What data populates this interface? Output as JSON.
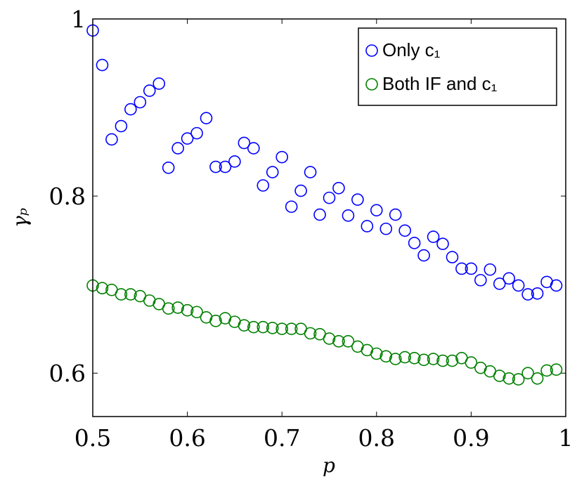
{
  "chart_data": {
    "type": "scatter",
    "x_label": "p",
    "y_label": "γₚ",
    "x": [
      0.5,
      0.51,
      0.52,
      0.53,
      0.54,
      0.55,
      0.56,
      0.57,
      0.58,
      0.59,
      0.6,
      0.61,
      0.62,
      0.63,
      0.64,
      0.65,
      0.66,
      0.67,
      0.68,
      0.69,
      0.7,
      0.71,
      0.72,
      0.73,
      0.74,
      0.75,
      0.76,
      0.77,
      0.78,
      0.79,
      0.8,
      0.81,
      0.82,
      0.83,
      0.84,
      0.85,
      0.86,
      0.87,
      0.88,
      0.89,
      0.9,
      0.91,
      0.92,
      0.93,
      0.94,
      0.95,
      0.96,
      0.97,
      0.98,
      0.99
    ],
    "series": [
      {
        "name": "Only c₁",
        "color": "#0000ff",
        "values": [
          0.987,
          0.948,
          0.864,
          0.879,
          0.898,
          0.906,
          0.919,
          0.927,
          0.832,
          0.854,
          0.865,
          0.871,
          0.888,
          0.833,
          0.833,
          0.839,
          0.86,
          0.854,
          0.812,
          0.827,
          0.844,
          0.788,
          0.806,
          0.827,
          0.779,
          0.798,
          0.809,
          0.778,
          0.796,
          0.766,
          0.784,
          0.763,
          0.779,
          0.761,
          0.747,
          0.733,
          0.754,
          0.746,
          0.731,
          0.718,
          0.718,
          0.705,
          0.717,
          0.701,
          0.707,
          0.699,
          0.689,
          0.69,
          0.703,
          0.699
        ]
      },
      {
        "name": "Both IF and c₁",
        "color": "#008000",
        "values": [
          0.699,
          0.696,
          0.694,
          0.689,
          0.689,
          0.687,
          0.682,
          0.678,
          0.673,
          0.674,
          0.671,
          0.669,
          0.663,
          0.659,
          0.662,
          0.658,
          0.654,
          0.652,
          0.652,
          0.651,
          0.65,
          0.65,
          0.65,
          0.645,
          0.644,
          0.639,
          0.636,
          0.636,
          0.63,
          0.626,
          0.622,
          0.619,
          0.616,
          0.618,
          0.617,
          0.615,
          0.616,
          0.614,
          0.614,
          0.617,
          0.612,
          0.606,
          0.602,
          0.597,
          0.594,
          0.593,
          0.6,
          0.594,
          0.603,
          0.604
        ]
      }
    ],
    "xlim": [
      0.5,
      1
    ],
    "ylim": [
      0.551,
      1
    ],
    "xticks": [
      0.5,
      0.6,
      0.7,
      0.8,
      0.9,
      1
    ],
    "yticks": [
      0.6,
      0.8,
      1
    ],
    "legend": "top-right"
  }
}
